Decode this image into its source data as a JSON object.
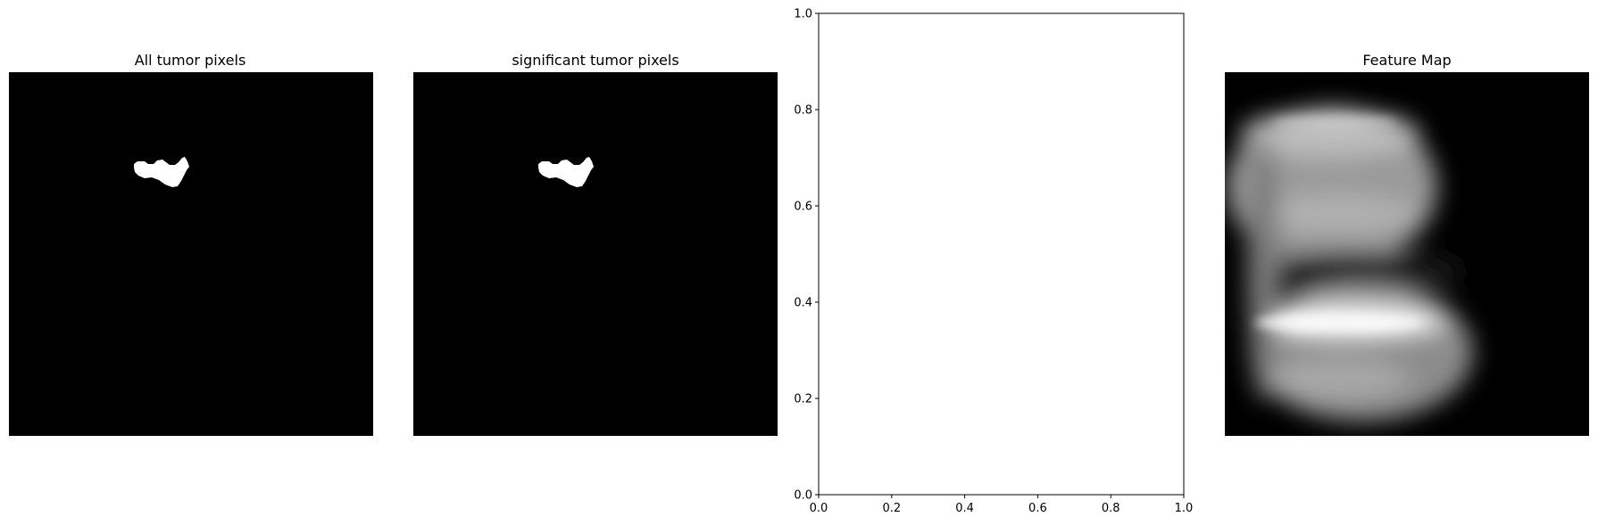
{
  "chart_data": [
    {
      "type": "image",
      "title": "All tumor pixels",
      "colormap": "gray",
      "axes_visible": false,
      "content": "binary mask, single white region on black background"
    },
    {
      "type": "image",
      "title": "significant tumor pixels",
      "colormap": "gray",
      "axes_visible": false,
      "content": "binary mask, single white region on black background"
    },
    {
      "type": "empty",
      "title": "",
      "xlim": [
        0,
        1
      ],
      "ylim": [
        0,
        1
      ],
      "xticks": [
        "0.0",
        "0.2",
        "0.4",
        "0.6",
        "0.8",
        "1.0"
      ],
      "yticks": [
        "0.0",
        "0.2",
        "0.4",
        "0.6",
        "0.8",
        "1.0"
      ],
      "grid": false
    },
    {
      "type": "image",
      "title": "Feature Map",
      "colormap": "gray",
      "axes_visible": false,
      "content": "blurred grayscale feature map"
    }
  ],
  "colors": {
    "mask_background": "#000000",
    "mask_foreground": "#ffffff",
    "axes_edge": "#000000",
    "figure_background": "#ffffff"
  }
}
